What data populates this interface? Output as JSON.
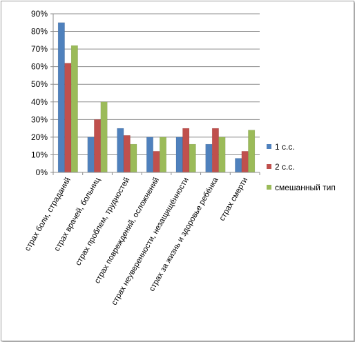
{
  "chart_data": {
    "type": "bar",
    "title": "",
    "xlabel": "",
    "ylabel": "",
    "ylim": [
      0,
      90
    ],
    "yticks": [
      "0%",
      "10%",
      "20%",
      "30%",
      "40%",
      "50%",
      "60%",
      "70%",
      "80%",
      "90%"
    ],
    "grid": true,
    "legend_position": "right",
    "categories": [
      "страх боли, страданий",
      "страх врачей, больниц",
      "страх проблем, трудностей",
      "страх повреждений, осложнений",
      "страх неуверенности, незащищённости",
      "страх за жизнь и здоровье ребёнка",
      "страх смерти"
    ],
    "series": [
      {
        "name": "1 с.с.",
        "color": "#4f81bd",
        "values": [
          85,
          20,
          25,
          20,
          20,
          16,
          8
        ]
      },
      {
        "name": "2 с.с.",
        "color": "#c0504d",
        "values": [
          62,
          30,
          21,
          12,
          25,
          25,
          12
        ]
      },
      {
        "name": "смешанный тип",
        "color": "#9bbb59",
        "values": [
          72,
          40,
          16,
          20,
          16,
          20,
          24
        ]
      }
    ]
  }
}
